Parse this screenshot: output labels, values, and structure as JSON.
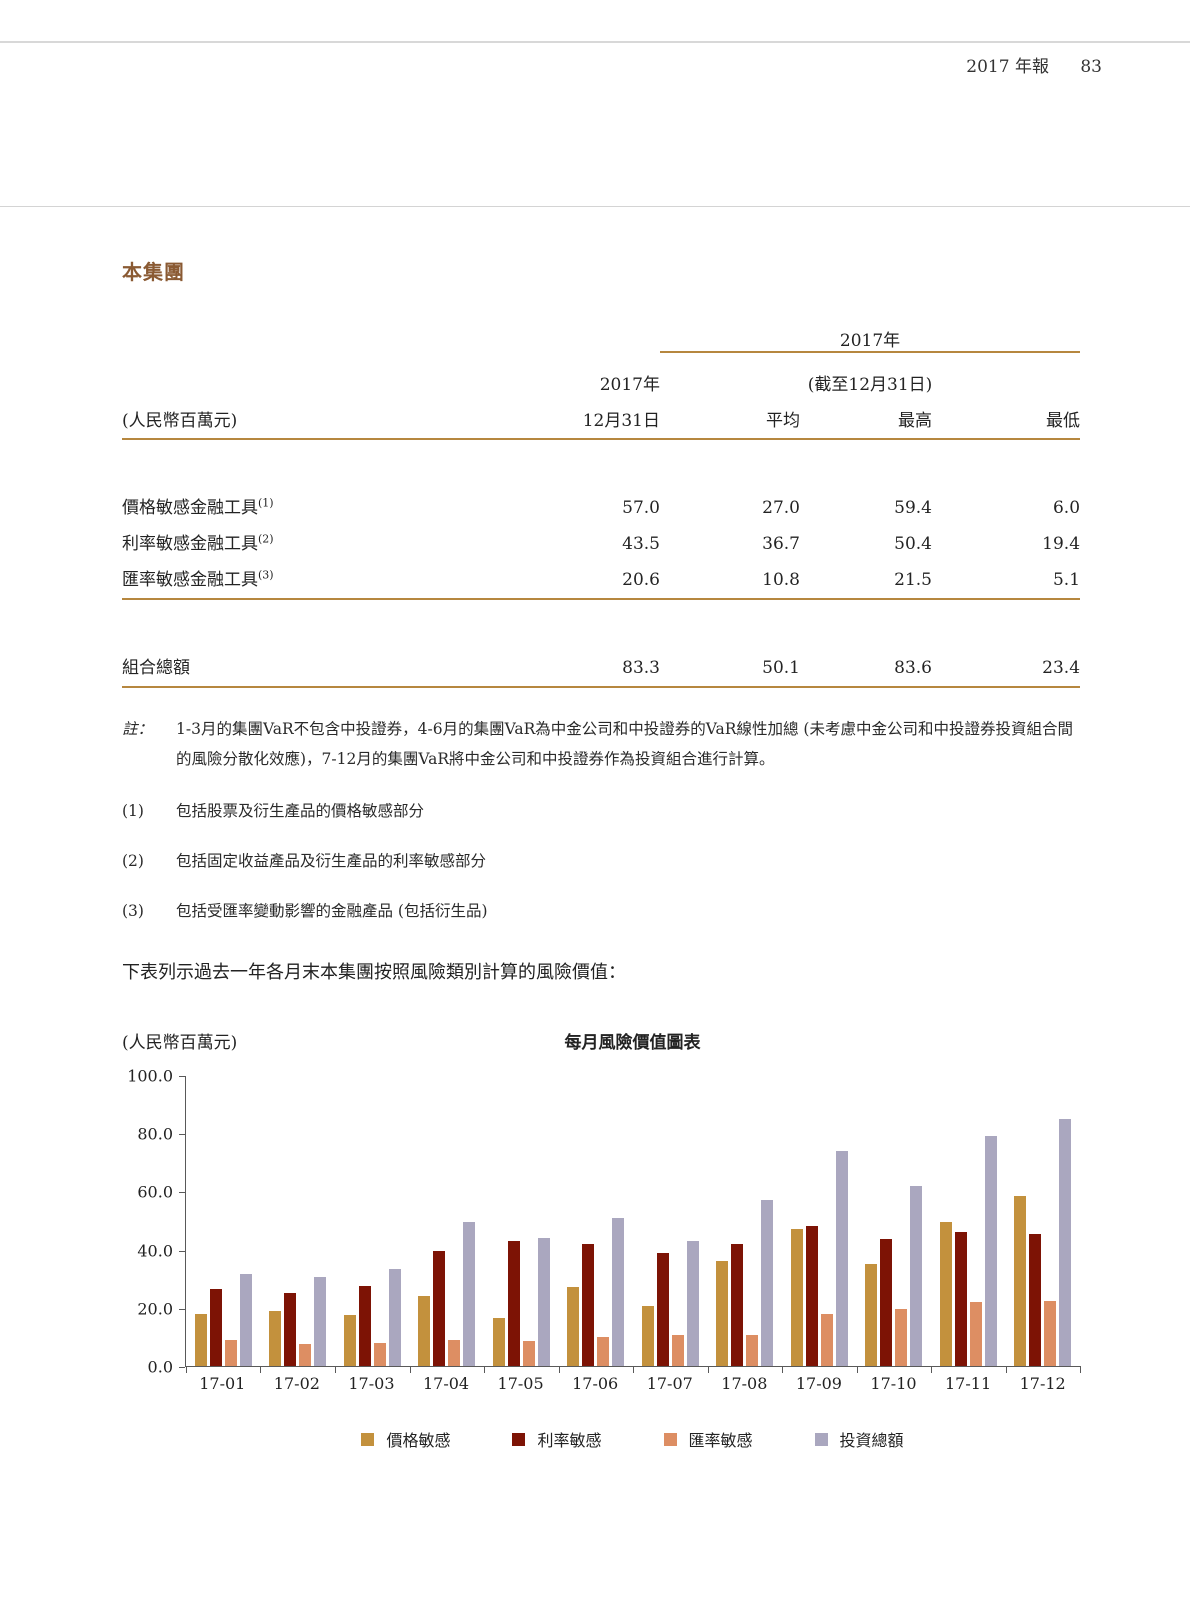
{
  "page_header": {
    "report_title": "2017 年報",
    "page_number": "83"
  },
  "section": {
    "heading": "本集團"
  },
  "table": {
    "unit_label": "(人民幣百萬元)",
    "group_header": {
      "year": "2017年",
      "sub": "(截至12月31日)"
    },
    "first_col_header": {
      "line1": "2017年",
      "line2": "12月31日"
    },
    "stat_headers": [
      "平均",
      "最高",
      "最低"
    ],
    "rows": [
      {
        "label": "價格敏感金融工具",
        "sup": "(1)",
        "values": [
          "57.0",
          "27.0",
          "59.4",
          "6.0"
        ]
      },
      {
        "label": "利率敏感金融工具",
        "sup": "(2)",
        "values": [
          "43.5",
          "36.7",
          "50.4",
          "19.4"
        ]
      },
      {
        "label": "匯率敏感金融工具",
        "sup": "(3)",
        "values": [
          "20.6",
          "10.8",
          "21.5",
          "5.1"
        ]
      }
    ],
    "total_row": {
      "label": "組合總額",
      "values": [
        "83.3",
        "50.1",
        "83.6",
        "23.4"
      ]
    }
  },
  "notes": {
    "note_label": "註：",
    "note_text": "1-3月的集團VaR不包含中投證券，4-6月的集團VaR為中金公司和中投證券的VaR線性加總 (未考慮中金公司和中投證券投資組合間的風險分散化效應)，7-12月的集團VaR將中金公司和中投證券作為投資組合進行計算。",
    "items": [
      {
        "num": "(1)",
        "text": "包括股票及衍生產品的價格敏感部分"
      },
      {
        "num": "(2)",
        "text": "包括固定收益產品及衍生產品的利率敏感部分"
      },
      {
        "num": "(3)",
        "text": "包括受匯率變動影響的金融產品 (包括衍生品)"
      }
    ]
  },
  "lead_paragraph": "下表列示過去一年各月末本集團按照風險類別計算的風險價值：",
  "chart": {
    "unit_label": "(人民幣百萬元)",
    "title": "每月風險價值圖表"
  },
  "chart_data": {
    "type": "bar",
    "title": "每月風險價值圖表",
    "ylabel": "(人民幣百萬元)",
    "ylim": [
      0,
      100
    ],
    "ytick_values": [
      100,
      80,
      60,
      40,
      20,
      0
    ],
    "ytick_labels": [
      "100.0",
      "80.0",
      "60.0",
      "40.0",
      "20.0",
      "0.0"
    ],
    "grid": false,
    "legend_position": "bottom",
    "categories": [
      "17-01",
      "17-02",
      "17-03",
      "17-04",
      "17-05",
      "17-06",
      "17-07",
      "17-08",
      "17-09",
      "17-10",
      "17-11",
      "17-12"
    ],
    "series": [
      {
        "name": "價格敏感",
        "color": "#c3913d",
        "values": [
          18.0,
          19.0,
          17.5,
          24.0,
          16.5,
          27.0,
          20.5,
          36.0,
          47.0,
          35.0,
          49.5,
          58.5
        ]
      },
      {
        "name": "利率敏感",
        "color": "#7d1305",
        "values": [
          26.5,
          25.0,
          27.5,
          39.5,
          43.0,
          42.0,
          39.0,
          42.0,
          48.0,
          43.5,
          46.0,
          45.5
        ]
      },
      {
        "name": "匯率敏感",
        "color": "#dd8e63",
        "values": [
          9.0,
          7.5,
          8.0,
          9.0,
          8.5,
          10.0,
          10.5,
          10.5,
          18.0,
          19.5,
          22.0,
          22.5
        ]
      },
      {
        "name": "投資總額",
        "color": "#aaa7bf",
        "values": [
          31.5,
          30.5,
          33.5,
          49.5,
          44.0,
          51.0,
          43.0,
          57.0,
          74.0,
          62.0,
          79.0,
          85.0
        ]
      }
    ]
  }
}
